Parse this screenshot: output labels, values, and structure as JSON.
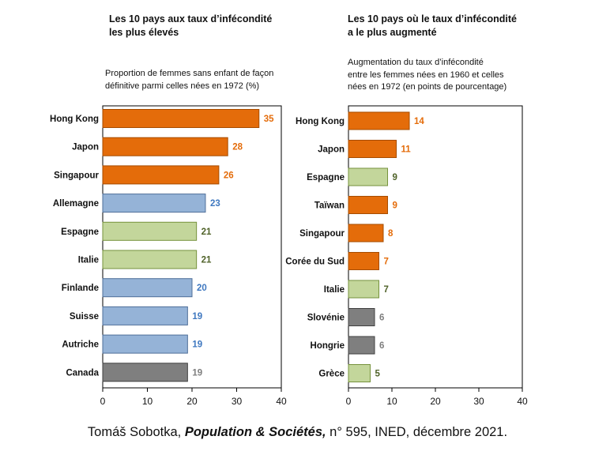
{
  "chart_data": [
    {
      "type": "bar",
      "orientation": "horizontal",
      "title": "Les 10 pays aux taux d’infécondité les plus élevés",
      "title_lines": [
        "Les 10 pays aux taux d’infécondité",
        "les plus élevés"
      ],
      "subtitle": "Proportion de femmes sans enfant de façon définitive parmi celles nées en 1972 (%)",
      "subtitle_lines": [
        "Proportion de femmes sans enfant de façon",
        "définitive parmi celles nées en 1972 (%)"
      ],
      "categories": [
        "Hong Kong",
        "Japon",
        "Singapour",
        "Allemagne",
        "Espagne",
        "Italie",
        "Finlande",
        "Suisse",
        "Autriche",
        "Canada"
      ],
      "values": [
        35,
        28,
        26,
        23,
        21,
        21,
        20,
        19,
        19,
        19
      ],
      "colors": [
        "orange",
        "orange",
        "orange",
        "blue",
        "green",
        "green",
        "blue",
        "blue",
        "blue",
        "gray"
      ],
      "xlim": [
        0,
        40
      ],
      "xticks": [
        0,
        10,
        20,
        30,
        40
      ],
      "grid": false
    },
    {
      "type": "bar",
      "orientation": "horizontal",
      "title": "Les 10 pays où le taux d’infécondité a le plus augmenté",
      "title_lines": [
        "Les 10 pays où le taux d’infécondité",
        "a le plus augmenté"
      ],
      "subtitle": "Augmentation du taux d’infécondité entre les femmes nées en 1960 et celles nées en 1972 (en points de pourcentage)",
      "subtitle_lines": [
        "Augmentation du taux d’infécondité",
        "entre les femmes nées en 1960 et celles",
        "nées en 1972 (en points de pourcentage)"
      ],
      "categories": [
        "Hong Kong",
        "Japon",
        "Espagne",
        "Taïwan",
        "Singapour",
        "Corée du Sud",
        "Italie",
        "Slovénie",
        "Hongrie",
        "Grèce"
      ],
      "values": [
        14,
        11,
        9,
        9,
        8,
        7,
        7,
        6,
        6,
        5
      ],
      "colors": [
        "orange",
        "orange",
        "green",
        "orange",
        "orange",
        "orange",
        "green",
        "gray",
        "gray",
        "green"
      ],
      "xlim": [
        0,
        40
      ],
      "xticks": [
        0,
        10,
        20,
        30,
        40
      ],
      "grid": false
    }
  ],
  "palette": {
    "orange": {
      "fill": "#e46c0a",
      "stroke": "#a64c00",
      "text": "#e46c0a"
    },
    "blue": {
      "fill": "#95b3d7",
      "stroke": "#4f6f99",
      "text": "#3f78c0"
    },
    "green": {
      "fill": "#c3d69b",
      "stroke": "#76923c",
      "text": "#4f6228"
    },
    "gray": {
      "fill": "#7f7f7f",
      "stroke": "#404040",
      "text": "#7f7f7f"
    }
  },
  "source": {
    "prefix": "Tomáš Sobotka, ",
    "journal": "Population & Sociétés,",
    "suffix": " n° 595, INED, décembre 2021."
  }
}
